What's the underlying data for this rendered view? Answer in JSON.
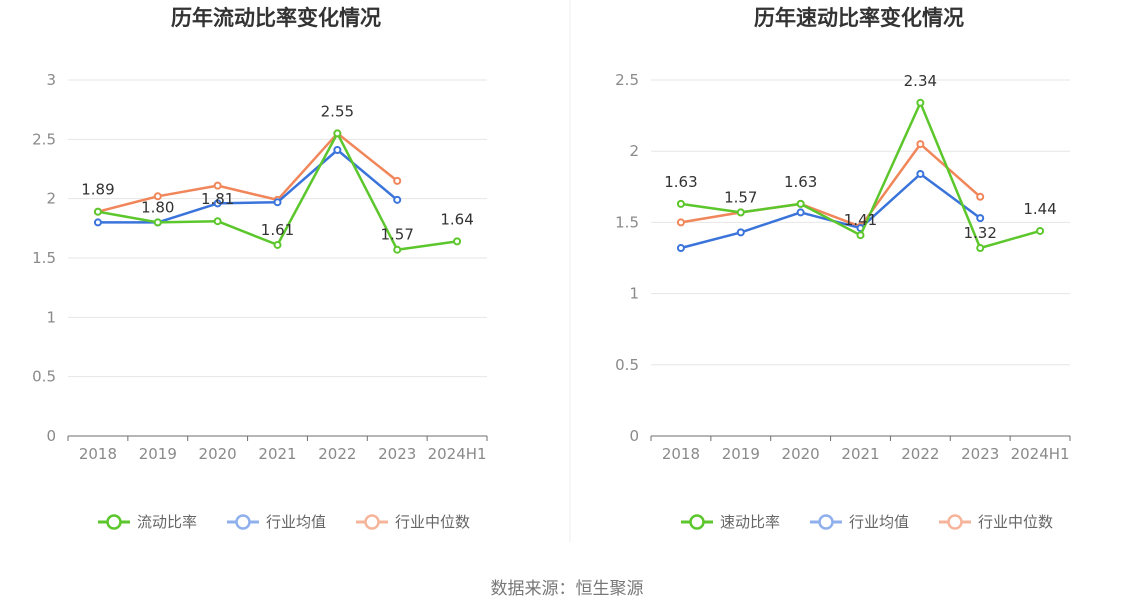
{
  "source": "数据来源：恒生聚源",
  "colors": {
    "company": "#5cc72c",
    "industry_avg": "#3a74db",
    "industry_median": "#f0865a"
  },
  "chart_data": [
    {
      "type": "line",
      "title": "历年流动比率变化情况",
      "categories": [
        "2018",
        "2019",
        "2020",
        "2021",
        "2022",
        "2023",
        "2024H1"
      ],
      "ylim": [
        0,
        3
      ],
      "yticks": [
        0,
        0.5,
        1,
        1.5,
        2,
        2.5,
        3
      ],
      "ytick_labels": [
        "0",
        "0.5",
        "1",
        "1.5",
        "2",
        "2.5",
        "3"
      ],
      "grid": true,
      "legend_position": "bottom",
      "series": [
        {
          "name": "流动比率",
          "key": "company",
          "values": [
            1.89,
            1.8,
            1.81,
            1.61,
            2.55,
            1.57,
            1.64
          ],
          "labels": [
            "1.89",
            "1.80",
            "1.81",
            "1.61",
            "2.55",
            "1.57",
            "1.64"
          ]
        },
        {
          "name": "行业均值",
          "key": "industry_avg",
          "values": [
            1.8,
            1.8,
            1.96,
            1.97,
            2.41,
            1.99,
            null
          ]
        },
        {
          "name": "行业中位数",
          "key": "industry_median",
          "values": [
            1.89,
            2.02,
            2.11,
            1.99,
            2.55,
            2.15,
            null
          ]
        }
      ]
    },
    {
      "type": "line",
      "title": "历年速动比率变化情况",
      "categories": [
        "2018",
        "2019",
        "2020",
        "2021",
        "2022",
        "2023",
        "2024H1"
      ],
      "ylim": [
        0,
        2.5
      ],
      "yticks": [
        0,
        0.5,
        1,
        1.5,
        2,
        2.5
      ],
      "ytick_labels": [
        "0",
        "0.5",
        "1",
        "1.5",
        "2",
        "2.5"
      ],
      "grid": true,
      "legend_position": "bottom",
      "series": [
        {
          "name": "速动比率",
          "key": "company",
          "values": [
            1.63,
            1.57,
            1.63,
            1.41,
            2.34,
            1.32,
            1.44
          ],
          "labels": [
            "1.63",
            "1.57",
            "1.63",
            "1.41",
            "2.34",
            "1.32",
            "1.44"
          ]
        },
        {
          "name": "行业均值",
          "key": "industry_avg",
          "values": [
            1.32,
            1.43,
            1.57,
            1.46,
            1.84,
            1.53,
            null
          ]
        },
        {
          "name": "行业中位数",
          "key": "industry_median",
          "values": [
            1.5,
            1.57,
            1.63,
            1.47,
            2.05,
            1.68,
            null
          ]
        }
      ]
    }
  ]
}
